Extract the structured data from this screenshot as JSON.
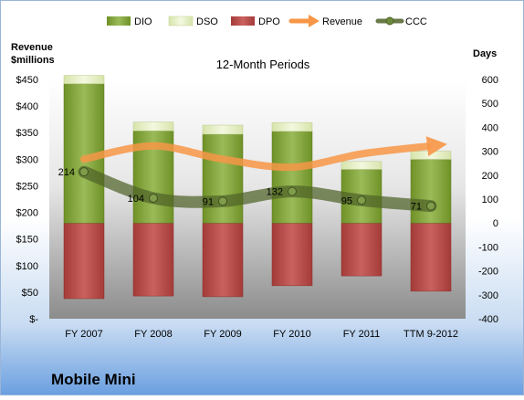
{
  "chart_data": {
    "type": "bar",
    "title": "Mobile Mini",
    "subtitle": "12-Month Periods",
    "left_axis": {
      "title_line1": "Revenue",
      "title_line2": "$millions",
      "range": [
        0,
        450
      ],
      "tick_labels": [
        "$-",
        "$50",
        "$100",
        "$150",
        "$200",
        "$250",
        "$300",
        "$350",
        "$400",
        "$450"
      ]
    },
    "right_axis": {
      "title": "Days",
      "range": [
        -400,
        600
      ],
      "tick_labels": [
        "-400",
        "-300",
        "-200",
        "-100",
        "0",
        "100",
        "200",
        "300",
        "400",
        "500",
        "600"
      ]
    },
    "categories": [
      "FY 2007",
      "FY 2008",
      "FY 2009",
      "FY 2010",
      "FY 2011",
      "TTM 9-2012"
    ],
    "series": [
      {
        "name": "DIO",
        "axis": "right",
        "values": [
          582,
          385,
          371,
          383,
          224,
          266
        ],
        "color": "#7a9e2e"
      },
      {
        "name": "DSO",
        "axis": "right",
        "values": [
          35,
          37,
          38,
          37,
          33,
          34
        ],
        "color": "#eaf3c6"
      },
      {
        "name": "DPO",
        "axis": "right",
        "values": [
          -316,
          -305,
          -308,
          -262,
          -221,
          -285
        ],
        "color": "#c0504d"
      },
      {
        "name": "Revenue",
        "axis": "left",
        "values": [
          300,
          325,
          300,
          285,
          310,
          325
        ],
        "color": "#f79646"
      },
      {
        "name": "CCC",
        "axis": "right",
        "values": [
          214,
          104,
          91,
          132,
          95,
          71
        ],
        "color": "#4f6228"
      }
    ],
    "ccc_labels": [
      "214",
      "104",
      "91",
      "132",
      "95",
      "71"
    ],
    "legend_position": "top",
    "grid": false
  }
}
